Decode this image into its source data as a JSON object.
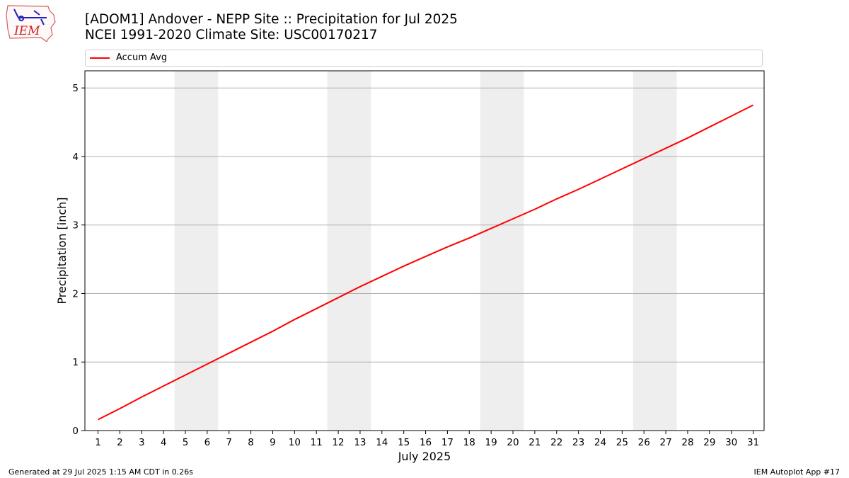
{
  "logo": {
    "text": "IEM",
    "icon": "iowa-state-outline-logo"
  },
  "title_line1": "[ADOM1] Andover - NEPP Site :: Precipitation for Jul 2025",
  "title_line2": "NCEI 1991-2020 Climate Site: USC00170217",
  "footer_left": "Generated at 29 Jul 2025 1:15 AM CDT in 0.26s",
  "footer_right": "IEM Autoplot App #17",
  "colors": {
    "series": "#ff0000",
    "weekend_shade": "#eeeeee",
    "grid": "#b0b0b0"
  },
  "chart_data": {
    "type": "line",
    "xlabel": "July 2025",
    "ylabel": "Precipitation [inch]",
    "xlim": [
      0.4,
      31.5
    ],
    "ylim": [
      0,
      5.25
    ],
    "x_ticks": [
      1,
      2,
      3,
      4,
      5,
      6,
      7,
      8,
      9,
      10,
      11,
      12,
      13,
      14,
      15,
      16,
      17,
      18,
      19,
      20,
      21,
      22,
      23,
      24,
      25,
      26,
      27,
      28,
      29,
      30,
      31
    ],
    "y_ticks": [
      0,
      1,
      2,
      3,
      4,
      5
    ],
    "grid": "y",
    "legend": {
      "placement": "top",
      "entries": [
        "Accum Avg"
      ]
    },
    "shaded_ranges": [
      [
        4.5,
        6.5
      ],
      [
        11.5,
        13.5
      ],
      [
        18.5,
        20.5
      ],
      [
        25.5,
        27.5
      ]
    ],
    "series": [
      {
        "name": "Accum Avg",
        "x": [
          1,
          2,
          3,
          4,
          5,
          6,
          7,
          8,
          9,
          10,
          11,
          12,
          13,
          14,
          15,
          16,
          17,
          18,
          19,
          20,
          21,
          22,
          23,
          24,
          25,
          26,
          27,
          28,
          29,
          30,
          31
        ],
        "y": [
          0.16,
          0.32,
          0.49,
          0.65,
          0.81,
          0.97,
          1.13,
          1.29,
          1.45,
          1.62,
          1.78,
          1.94,
          2.1,
          2.25,
          2.4,
          2.54,
          2.68,
          2.81,
          2.95,
          3.09,
          3.23,
          3.38,
          3.52,
          3.67,
          3.82,
          3.97,
          4.12,
          4.27,
          4.43,
          4.59,
          4.75
        ]
      }
    ]
  }
}
